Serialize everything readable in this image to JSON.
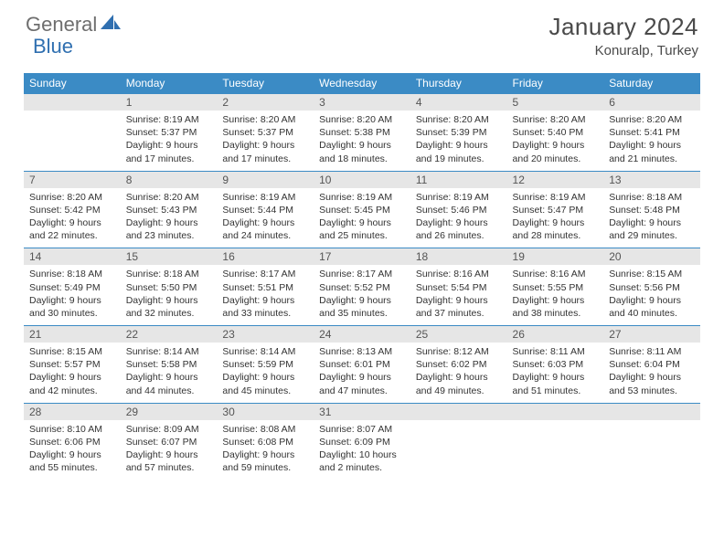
{
  "brand": {
    "part1": "General",
    "part2": "Blue"
  },
  "title": "January 2024",
  "location": "Konuralp, Turkey",
  "colors": {
    "header_bg": "#3b8bc5",
    "header_text": "#ffffff",
    "daynum_bg": "#e6e6e6",
    "border": "#3b8bc5",
    "logo_gray": "#6e6e6e",
    "logo_blue": "#2f6fb0"
  },
  "typography": {
    "title_fontsize": 26,
    "location_fontsize": 15,
    "header_fontsize": 12,
    "cell_fontsize": 10.5
  },
  "days_of_week": [
    "Sunday",
    "Monday",
    "Tuesday",
    "Wednesday",
    "Thursday",
    "Friday",
    "Saturday"
  ],
  "weeks": [
    [
      null,
      {
        "n": "1",
        "sunrise": "8:19 AM",
        "sunset": "5:37 PM",
        "daylight": "9 hours and 17 minutes."
      },
      {
        "n": "2",
        "sunrise": "8:20 AM",
        "sunset": "5:37 PM",
        "daylight": "9 hours and 17 minutes."
      },
      {
        "n": "3",
        "sunrise": "8:20 AM",
        "sunset": "5:38 PM",
        "daylight": "9 hours and 18 minutes."
      },
      {
        "n": "4",
        "sunrise": "8:20 AM",
        "sunset": "5:39 PM",
        "daylight": "9 hours and 19 minutes."
      },
      {
        "n": "5",
        "sunrise": "8:20 AM",
        "sunset": "5:40 PM",
        "daylight": "9 hours and 20 minutes."
      },
      {
        "n": "6",
        "sunrise": "8:20 AM",
        "sunset": "5:41 PM",
        "daylight": "9 hours and 21 minutes."
      }
    ],
    [
      {
        "n": "7",
        "sunrise": "8:20 AM",
        "sunset": "5:42 PM",
        "daylight": "9 hours and 22 minutes."
      },
      {
        "n": "8",
        "sunrise": "8:20 AM",
        "sunset": "5:43 PM",
        "daylight": "9 hours and 23 minutes."
      },
      {
        "n": "9",
        "sunrise": "8:19 AM",
        "sunset": "5:44 PM",
        "daylight": "9 hours and 24 minutes."
      },
      {
        "n": "10",
        "sunrise": "8:19 AM",
        "sunset": "5:45 PM",
        "daylight": "9 hours and 25 minutes."
      },
      {
        "n": "11",
        "sunrise": "8:19 AM",
        "sunset": "5:46 PM",
        "daylight": "9 hours and 26 minutes."
      },
      {
        "n": "12",
        "sunrise": "8:19 AM",
        "sunset": "5:47 PM",
        "daylight": "9 hours and 28 minutes."
      },
      {
        "n": "13",
        "sunrise": "8:18 AM",
        "sunset": "5:48 PM",
        "daylight": "9 hours and 29 minutes."
      }
    ],
    [
      {
        "n": "14",
        "sunrise": "8:18 AM",
        "sunset": "5:49 PM",
        "daylight": "9 hours and 30 minutes."
      },
      {
        "n": "15",
        "sunrise": "8:18 AM",
        "sunset": "5:50 PM",
        "daylight": "9 hours and 32 minutes."
      },
      {
        "n": "16",
        "sunrise": "8:17 AM",
        "sunset": "5:51 PM",
        "daylight": "9 hours and 33 minutes."
      },
      {
        "n": "17",
        "sunrise": "8:17 AM",
        "sunset": "5:52 PM",
        "daylight": "9 hours and 35 minutes."
      },
      {
        "n": "18",
        "sunrise": "8:16 AM",
        "sunset": "5:54 PM",
        "daylight": "9 hours and 37 minutes."
      },
      {
        "n": "19",
        "sunrise": "8:16 AM",
        "sunset": "5:55 PM",
        "daylight": "9 hours and 38 minutes."
      },
      {
        "n": "20",
        "sunrise": "8:15 AM",
        "sunset": "5:56 PM",
        "daylight": "9 hours and 40 minutes."
      }
    ],
    [
      {
        "n": "21",
        "sunrise": "8:15 AM",
        "sunset": "5:57 PM",
        "daylight": "9 hours and 42 minutes."
      },
      {
        "n": "22",
        "sunrise": "8:14 AM",
        "sunset": "5:58 PM",
        "daylight": "9 hours and 44 minutes."
      },
      {
        "n": "23",
        "sunrise": "8:14 AM",
        "sunset": "5:59 PM",
        "daylight": "9 hours and 45 minutes."
      },
      {
        "n": "24",
        "sunrise": "8:13 AM",
        "sunset": "6:01 PM",
        "daylight": "9 hours and 47 minutes."
      },
      {
        "n": "25",
        "sunrise": "8:12 AM",
        "sunset": "6:02 PM",
        "daylight": "9 hours and 49 minutes."
      },
      {
        "n": "26",
        "sunrise": "8:11 AM",
        "sunset": "6:03 PM",
        "daylight": "9 hours and 51 minutes."
      },
      {
        "n": "27",
        "sunrise": "8:11 AM",
        "sunset": "6:04 PM",
        "daylight": "9 hours and 53 minutes."
      }
    ],
    [
      {
        "n": "28",
        "sunrise": "8:10 AM",
        "sunset": "6:06 PM",
        "daylight": "9 hours and 55 minutes."
      },
      {
        "n": "29",
        "sunrise": "8:09 AM",
        "sunset": "6:07 PM",
        "daylight": "9 hours and 57 minutes."
      },
      {
        "n": "30",
        "sunrise": "8:08 AM",
        "sunset": "6:08 PM",
        "daylight": "9 hours and 59 minutes."
      },
      {
        "n": "31",
        "sunrise": "8:07 AM",
        "sunset": "6:09 PM",
        "daylight": "10 hours and 2 minutes."
      },
      null,
      null,
      null
    ]
  ]
}
